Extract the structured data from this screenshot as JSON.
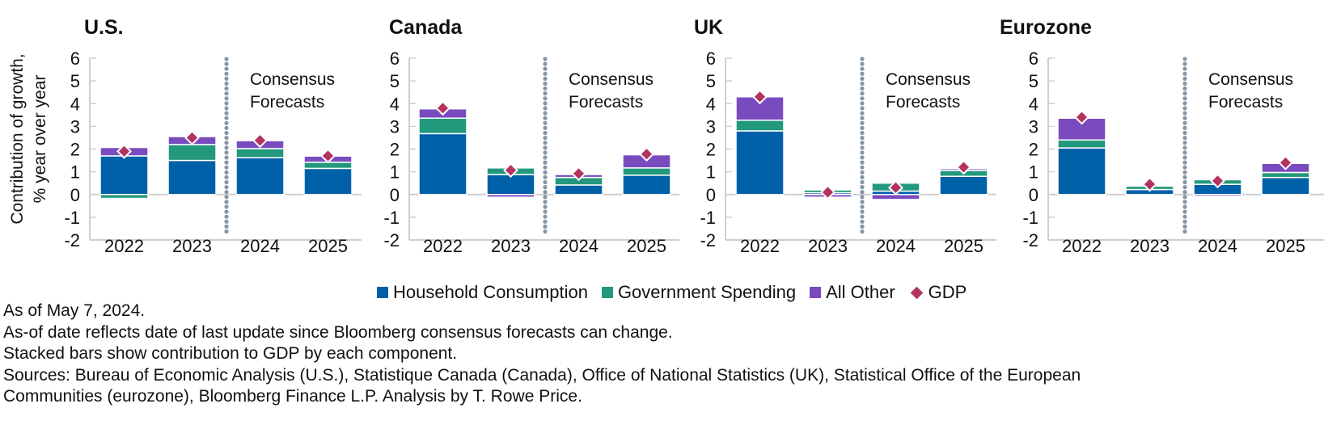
{
  "chart_data": {
    "type": "bar",
    "stacked": true,
    "ylabel": "Contribution of growth, % year over year",
    "ylabel_lines": [
      "Contribution of growth,",
      "% year over year"
    ],
    "ylim": [
      -2,
      6
    ],
    "yticks": [
      6,
      5,
      4,
      3,
      2,
      1,
      0,
      -1,
      -2
    ],
    "categories": [
      "2022",
      "2023",
      "2024",
      "2025"
    ],
    "forecast_annotation": [
      "Consensus",
      "Forecasts"
    ],
    "forecast_starts_at": "2024",
    "colors": {
      "Household Consumption": "#0060A8",
      "Government Spending": "#22987C",
      "All Other": "#7A4BBF",
      "GDP": "#B3325E",
      "divider": "#8896A4",
      "axis": "#CFCFCF"
    },
    "legend": {
      "position": "bottom-center",
      "entries": [
        {
          "label": "Household Consumption",
          "marker": "square"
        },
        {
          "label": "Government Spending",
          "marker": "square"
        },
        {
          "label": "All Other",
          "marker": "square"
        },
        {
          "label": "GDP",
          "marker": "diamond"
        }
      ]
    },
    "panels": [
      {
        "title": "U.S.",
        "series": [
          {
            "name": "Household Consumption",
            "values": [
              1.7,
              1.5,
              1.62,
              1.15
            ]
          },
          {
            "name": "Government Spending",
            "values": [
              -0.17,
              0.7,
              0.4,
              0.27
            ]
          },
          {
            "name": "All Other",
            "values": [
              0.37,
              0.35,
              0.35,
              0.27
            ]
          },
          {
            "name": "GDP",
            "values": [
              1.9,
              2.5,
              2.38,
              1.7
            ]
          }
        ]
      },
      {
        "title": "Canada",
        "series": [
          {
            "name": "Household Consumption",
            "values": [
              2.68,
              0.88,
              0.42,
              0.85
            ]
          },
          {
            "name": "Government Spending",
            "values": [
              0.68,
              0.29,
              0.33,
              0.32
            ]
          },
          {
            "name": "All Other",
            "values": [
              0.41,
              -0.12,
              0.13,
              0.58
            ]
          },
          {
            "name": "GDP",
            "values": [
              3.8,
              1.07,
              0.92,
              1.78
            ]
          }
        ]
      },
      {
        "title": "UK",
        "series": [
          {
            "name": "Household Consumption",
            "values": [
              2.8,
              0.08,
              0.15,
              0.8
            ]
          },
          {
            "name": "Government Spending",
            "values": [
              0.47,
              0.12,
              0.35,
              0.26
            ]
          },
          {
            "name": "All Other",
            "values": [
              1.03,
              -0.12,
              -0.22,
              0.08
            ]
          },
          {
            "name": "GDP",
            "values": [
              4.3,
              0.1,
              0.3,
              1.2
            ]
          }
        ]
      },
      {
        "title": "Eurozone",
        "series": [
          {
            "name": "Household Consumption",
            "values": [
              2.05,
              0.22,
              0.45,
              0.75
            ]
          },
          {
            "name": "Government Spending",
            "values": [
              0.35,
              0.15,
              0.2,
              0.22
            ]
          },
          {
            "name": "All Other",
            "values": [
              0.96,
              0.0,
              -0.08,
              0.4
            ]
          },
          {
            "name": "GDP",
            "values": [
              3.4,
              0.45,
              0.6,
              1.4
            ]
          }
        ]
      }
    ]
  },
  "notes": [
    "As of May 7, 2024.",
    "As-of date reflects date of last update since Bloomberg consensus forecasts can change.",
    "Stacked bars show contribution to GDP by each component.",
    "Sources: Bureau of Economic Analysis (U.S.), Statistique Canada (Canada), Office of National Statistics (UK), Statistical Office of the European",
    "Communities (eurozone), Bloomberg Finance L.P. Analysis by T. Rowe Price."
  ]
}
